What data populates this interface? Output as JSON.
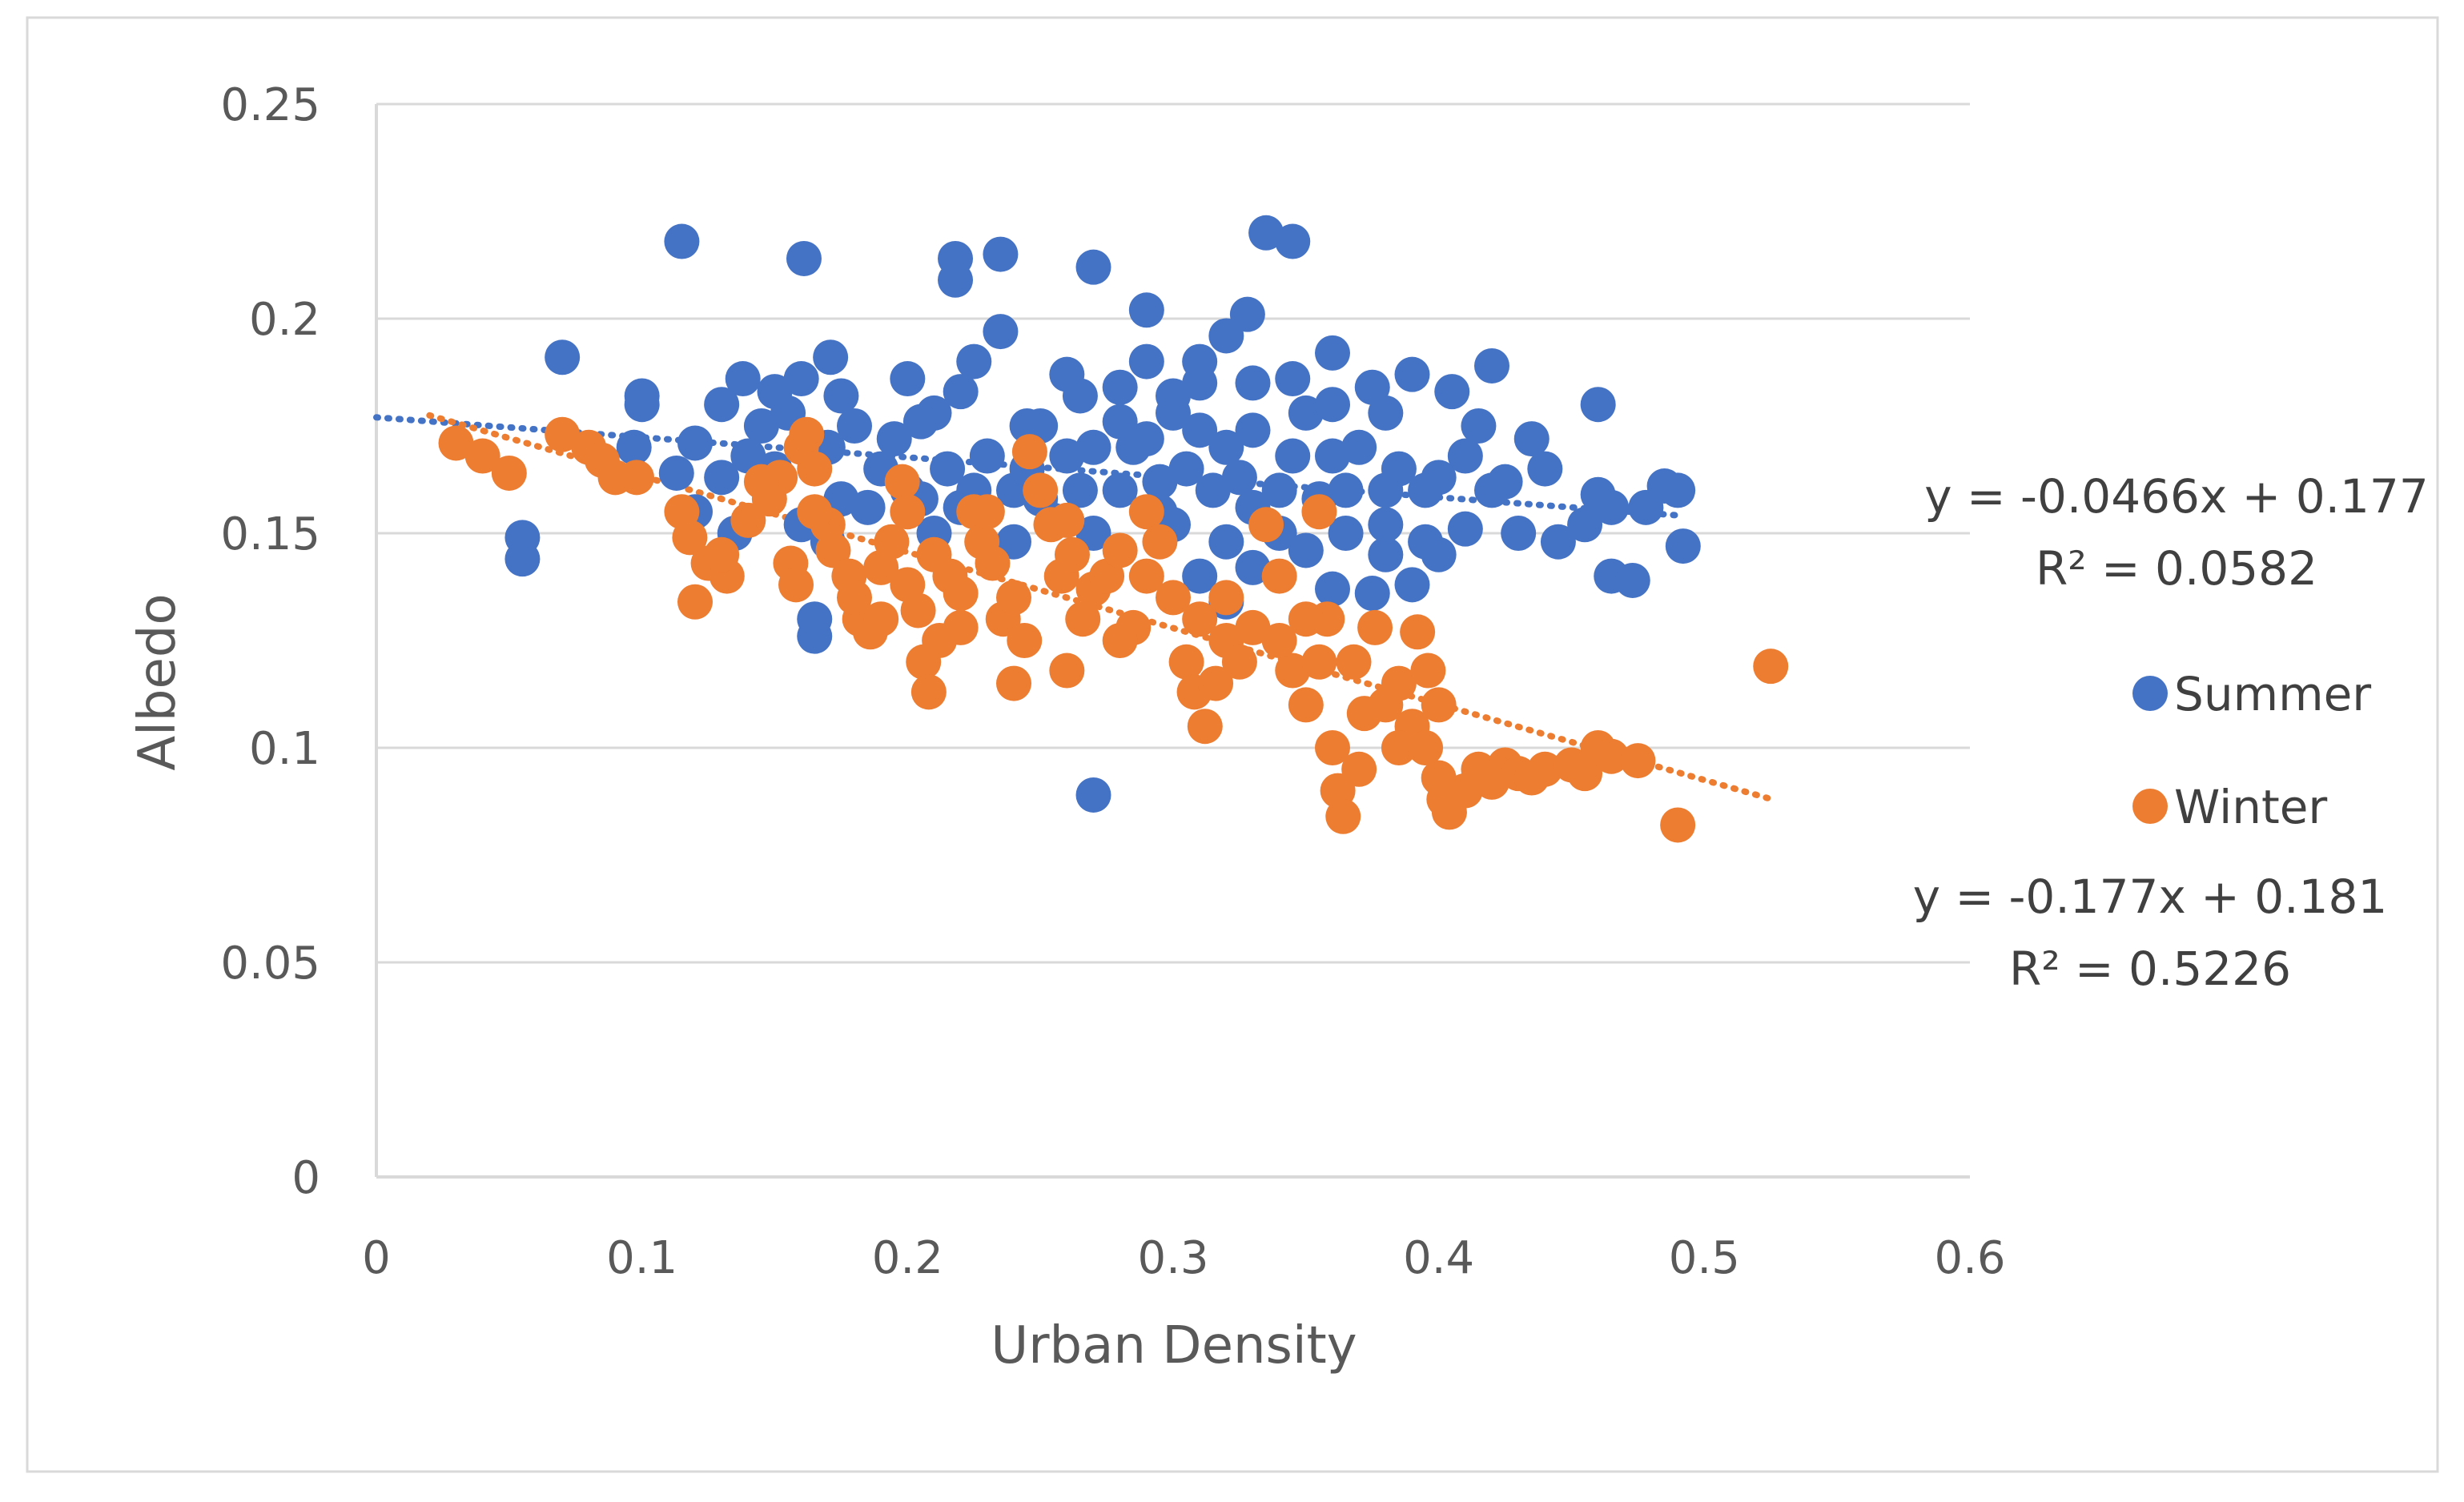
{
  "chart_data": {
    "type": "scatter",
    "title": "",
    "xlabel": "Urban Density",
    "ylabel": "Albedo",
    "xlim": [
      0,
      0.6
    ],
    "ylim": [
      0,
      0.25
    ],
    "x_ticks": [
      "0",
      "0.1",
      "0.2",
      "0.3",
      "0.4",
      "0.5",
      "0.6"
    ],
    "y_ticks": [
      "0",
      "0.05",
      "0.1",
      "0.15",
      "0.2",
      "0.25"
    ],
    "grid": "horizontal",
    "legend_position": "right",
    "series": [
      {
        "name": "Summer",
        "color": "#4472C4",
        "trendline": {
          "slope": -0.0466,
          "intercept": 0.177,
          "x_range": [
            0,
            0.49
          ],
          "equation": "y = -0.0466x + 0.177",
          "r2": "R² = 0.0582"
        },
        "points": [
          [
            0.115,
            0.218
          ],
          [
            0.161,
            0.214
          ],
          [
            0.218,
            0.214
          ],
          [
            0.235,
            0.215
          ],
          [
            0.27,
            0.212
          ],
          [
            0.218,
            0.209
          ],
          [
            0.335,
            0.22
          ],
          [
            0.345,
            0.218
          ],
          [
            0.29,
            0.202
          ],
          [
            0.328,
            0.201
          ],
          [
            0.07,
            0.191
          ],
          [
            0.1,
            0.182
          ],
          [
            0.1,
            0.18
          ],
          [
            0.171,
            0.191
          ],
          [
            0.235,
            0.197
          ],
          [
            0.32,
            0.196
          ],
          [
            0.26,
            0.187
          ],
          [
            0.36,
            0.192
          ],
          [
            0.39,
            0.187
          ],
          [
            0.42,
            0.189
          ],
          [
            0.46,
            0.18
          ],
          [
            0.138,
            0.186
          ],
          [
            0.16,
            0.186
          ],
          [
            0.2,
            0.186
          ],
          [
            0.13,
            0.18
          ],
          [
            0.15,
            0.183
          ],
          [
            0.22,
            0.183
          ],
          [
            0.28,
            0.184
          ],
          [
            0.31,
            0.185
          ],
          [
            0.33,
            0.185
          ],
          [
            0.375,
            0.184
          ],
          [
            0.405,
            0.183
          ],
          [
            0.097,
            0.17
          ],
          [
            0.12,
            0.171
          ],
          [
            0.145,
            0.175
          ],
          [
            0.18,
            0.175
          ],
          [
            0.21,
            0.178
          ],
          [
            0.25,
            0.175
          ],
          [
            0.3,
            0.178
          ],
          [
            0.35,
            0.178
          ],
          [
            0.415,
            0.175
          ],
          [
            0.435,
            0.172
          ],
          [
            0.113,
            0.164
          ],
          [
            0.13,
            0.163
          ],
          [
            0.14,
            0.168
          ],
          [
            0.19,
            0.165
          ],
          [
            0.23,
            0.168
          ],
          [
            0.27,
            0.17
          ],
          [
            0.32,
            0.17
          ],
          [
            0.37,
            0.17
          ],
          [
            0.41,
            0.168
          ],
          [
            0.44,
            0.165
          ],
          [
            0.46,
            0.159
          ],
          [
            0.465,
            0.156
          ],
          [
            0.485,
            0.161
          ],
          [
            0.49,
            0.16
          ],
          [
            0.478,
            0.156
          ],
          [
            0.455,
            0.152
          ],
          [
            0.445,
            0.148
          ],
          [
            0.43,
            0.15
          ],
          [
            0.41,
            0.151
          ],
          [
            0.395,
            0.148
          ],
          [
            0.38,
            0.145
          ],
          [
            0.4,
            0.145
          ],
          [
            0.39,
            0.138
          ],
          [
            0.375,
            0.136
          ],
          [
            0.465,
            0.14
          ],
          [
            0.473,
            0.139
          ],
          [
            0.492,
            0.147
          ],
          [
            0.055,
            0.149
          ],
          [
            0.055,
            0.144
          ],
          [
            0.12,
            0.155
          ],
          [
            0.135,
            0.15
          ],
          [
            0.16,
            0.152
          ],
          [
            0.185,
            0.156
          ],
          [
            0.205,
            0.158
          ],
          [
            0.22,
            0.156
          ],
          [
            0.24,
            0.16
          ],
          [
            0.25,
            0.158
          ],
          [
            0.265,
            0.16
          ],
          [
            0.28,
            0.16
          ],
          [
            0.295,
            0.162
          ],
          [
            0.305,
            0.165
          ],
          [
            0.315,
            0.16
          ],
          [
            0.325,
            0.163
          ],
          [
            0.34,
            0.16
          ],
          [
            0.355,
            0.158
          ],
          [
            0.365,
            0.16
          ],
          [
            0.38,
            0.16
          ],
          [
            0.395,
            0.16
          ],
          [
            0.42,
            0.16
          ],
          [
            0.15,
            0.165
          ],
          [
            0.17,
            0.17
          ],
          [
            0.195,
            0.172
          ],
          [
            0.215,
            0.165
          ],
          [
            0.245,
            0.165
          ],
          [
            0.26,
            0.168
          ],
          [
            0.285,
            0.17
          ],
          [
            0.29,
            0.172
          ],
          [
            0.31,
            0.174
          ],
          [
            0.33,
            0.174
          ],
          [
            0.345,
            0.168
          ],
          [
            0.36,
            0.168
          ],
          [
            0.385,
            0.165
          ],
          [
            0.4,
            0.163
          ],
          [
            0.425,
            0.162
          ],
          [
            0.17,
            0.148
          ],
          [
            0.21,
            0.15
          ],
          [
            0.24,
            0.148
          ],
          [
            0.27,
            0.15
          ],
          [
            0.3,
            0.152
          ],
          [
            0.32,
            0.148
          ],
          [
            0.34,
            0.15
          ],
          [
            0.35,
            0.146
          ],
          [
            0.365,
            0.15
          ],
          [
            0.38,
            0.152
          ],
          [
            0.31,
            0.14
          ],
          [
            0.33,
            0.142
          ],
          [
            0.32,
            0.134
          ],
          [
            0.36,
            0.137
          ],
          [
            0.165,
            0.13
          ],
          [
            0.165,
            0.126
          ],
          [
            0.29,
            0.19
          ],
          [
            0.3,
            0.182
          ],
          [
            0.28,
            0.176
          ],
          [
            0.265,
            0.182
          ],
          [
            0.345,
            0.186
          ],
          [
            0.36,
            0.18
          ],
          [
            0.38,
            0.178
          ],
          [
            0.27,
            0.089
          ],
          [
            0.155,
            0.178
          ],
          [
            0.175,
            0.182
          ],
          [
            0.205,
            0.176
          ],
          [
            0.225,
            0.19
          ],
          [
            0.245,
            0.175
          ],
          [
            0.31,
            0.19
          ],
          [
            0.33,
            0.156
          ],
          [
            0.295,
            0.155
          ],
          [
            0.255,
            0.153
          ],
          [
            0.225,
            0.16
          ],
          [
            0.2,
            0.16
          ],
          [
            0.175,
            0.158
          ]
        ]
      },
      {
        "name": "Winter",
        "color": "#ED7D31",
        "trendline": {
          "slope": -0.177,
          "intercept": 0.181,
          "x_range": [
            0.02,
            0.525
          ],
          "equation": "y = -0.177x + 0.181",
          "r2": "R² = 0.5226"
        },
        "points": [
          [
            0.03,
            0.171
          ],
          [
            0.04,
            0.168
          ],
          [
            0.05,
            0.164
          ],
          [
            0.07,
            0.173
          ],
          [
            0.08,
            0.17
          ],
          [
            0.085,
            0.167
          ],
          [
            0.09,
            0.163
          ],
          [
            0.098,
            0.163
          ],
          [
            0.115,
            0.155
          ],
          [
            0.118,
            0.149
          ],
          [
            0.12,
            0.134
          ],
          [
            0.125,
            0.143
          ],
          [
            0.132,
            0.14
          ],
          [
            0.14,
            0.153
          ],
          [
            0.148,
            0.158
          ],
          [
            0.152,
            0.163
          ],
          [
            0.156,
            0.143
          ],
          [
            0.158,
            0.138
          ],
          [
            0.16,
            0.17
          ],
          [
            0.162,
            0.173
          ],
          [
            0.165,
            0.165
          ],
          [
            0.17,
            0.152
          ],
          [
            0.172,
            0.146
          ],
          [
            0.178,
            0.14
          ],
          [
            0.182,
            0.13
          ],
          [
            0.186,
            0.127
          ],
          [
            0.19,
            0.13
          ],
          [
            0.194,
            0.148
          ],
          [
            0.198,
            0.162
          ],
          [
            0.2,
            0.155
          ],
          [
            0.204,
            0.132
          ],
          [
            0.206,
            0.12
          ],
          [
            0.208,
            0.113
          ],
          [
            0.212,
            0.125
          ],
          [
            0.216,
            0.14
          ],
          [
            0.22,
            0.136
          ],
          [
            0.225,
            0.155
          ],
          [
            0.228,
            0.148
          ],
          [
            0.232,
            0.143
          ],
          [
            0.236,
            0.13
          ],
          [
            0.24,
            0.115
          ],
          [
            0.244,
            0.125
          ],
          [
            0.246,
            0.169
          ],
          [
            0.25,
            0.16
          ],
          [
            0.254,
            0.152
          ],
          [
            0.258,
            0.14
          ],
          [
            0.262,
            0.145
          ],
          [
            0.266,
            0.13
          ],
          [
            0.27,
            0.137
          ],
          [
            0.275,
            0.14
          ],
          [
            0.28,
            0.146
          ],
          [
            0.285,
            0.128
          ],
          [
            0.29,
            0.155
          ],
          [
            0.295,
            0.148
          ],
          [
            0.3,
            0.135
          ],
          [
            0.305,
            0.12
          ],
          [
            0.308,
            0.113
          ],
          [
            0.312,
            0.105
          ],
          [
            0.316,
            0.115
          ],
          [
            0.32,
            0.125
          ],
          [
            0.325,
            0.12
          ],
          [
            0.33,
            0.128
          ],
          [
            0.335,
            0.152
          ],
          [
            0.34,
            0.14
          ],
          [
            0.345,
            0.118
          ],
          [
            0.35,
            0.11
          ],
          [
            0.355,
            0.155
          ],
          [
            0.358,
            0.13
          ],
          [
            0.36,
            0.1
          ],
          [
            0.362,
            0.09
          ],
          [
            0.364,
            0.084
          ],
          [
            0.368,
            0.12
          ],
          [
            0.372,
            0.108
          ],
          [
            0.376,
            0.128
          ],
          [
            0.38,
            0.11
          ],
          [
            0.385,
            0.115
          ],
          [
            0.39,
            0.105
          ],
          [
            0.392,
            0.127
          ],
          [
            0.396,
            0.118
          ],
          [
            0.4,
            0.11
          ],
          [
            0.4,
            0.093
          ],
          [
            0.402,
            0.088
          ],
          [
            0.404,
            0.085
          ],
          [
            0.41,
            0.09
          ],
          [
            0.415,
            0.095
          ],
          [
            0.42,
            0.092
          ],
          [
            0.425,
            0.096
          ],
          [
            0.43,
            0.094
          ],
          [
            0.435,
            0.093
          ],
          [
            0.44,
            0.095
          ],
          [
            0.45,
            0.096
          ],
          [
            0.455,
            0.094
          ],
          [
            0.46,
            0.1
          ],
          [
            0.465,
            0.098
          ],
          [
            0.475,
            0.097
          ],
          [
            0.49,
            0.082
          ],
          [
            0.525,
            0.119
          ],
          [
            0.13,
            0.145
          ],
          [
            0.145,
            0.162
          ],
          [
            0.19,
            0.142
          ],
          [
            0.21,
            0.145
          ],
          [
            0.23,
            0.155
          ],
          [
            0.26,
            0.153
          ],
          [
            0.28,
            0.125
          ],
          [
            0.31,
            0.13
          ],
          [
            0.34,
            0.125
          ],
          [
            0.37,
            0.095
          ],
          [
            0.385,
            0.1
          ],
          [
            0.395,
            0.1
          ],
          [
            0.35,
            0.13
          ],
          [
            0.32,
            0.135
          ],
          [
            0.29,
            0.14
          ],
          [
            0.26,
            0.118
          ],
          [
            0.24,
            0.135
          ],
          [
            0.22,
            0.128
          ],
          [
            0.2,
            0.138
          ],
          [
            0.18,
            0.135
          ],
          [
            0.165,
            0.155
          ],
          [
            0.355,
            0.12
          ]
        ]
      }
    ]
  }
}
